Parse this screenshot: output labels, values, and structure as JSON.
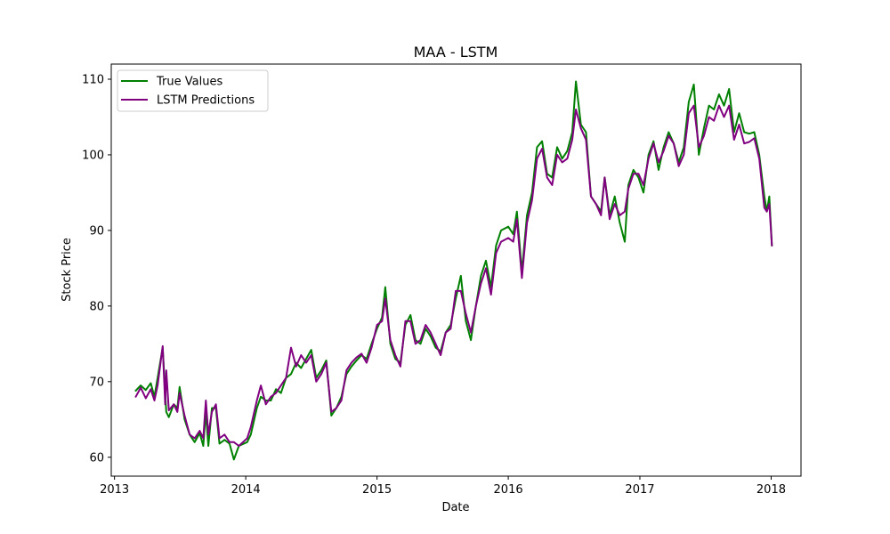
{
  "chart_data": {
    "type": "line",
    "title": "MAA - LSTM",
    "xlabel": "Date",
    "ylabel": "Stock Price",
    "xlim": [
      "2012-12-23",
      "2018-03-25"
    ],
    "ylim": [
      57.5,
      112.0
    ],
    "x_ticks": [
      {
        "date": "2013-01-01",
        "label": "2013"
      },
      {
        "date": "2014-01-01",
        "label": "2014"
      },
      {
        "date": "2015-01-01",
        "label": "2015"
      },
      {
        "date": "2016-01-01",
        "label": "2016"
      },
      {
        "date": "2017-01-01",
        "label": "2017"
      },
      {
        "date": "2018-01-01",
        "label": "2018"
      }
    ],
    "y_ticks": [
      60,
      70,
      80,
      90,
      100,
      110
    ],
    "grid": false,
    "legend_position": "top-left",
    "series": [
      {
        "name": "True Values",
        "color": "#008000",
        "points": [
          [
            "2013-03-01",
            68.8
          ],
          [
            "2013-03-15",
            69.5
          ],
          [
            "2013-03-29",
            68.9
          ],
          [
            "2013-04-12",
            69.8
          ],
          [
            "2013-04-22",
            68.0
          ],
          [
            "2013-05-01",
            70.5
          ],
          [
            "2013-05-15",
            74.5
          ],
          [
            "2013-05-25",
            66.0
          ],
          [
            "2013-06-01",
            65.3
          ],
          [
            "2013-06-15",
            67.0
          ],
          [
            "2013-06-25",
            66.5
          ],
          [
            "2013-07-01",
            69.3
          ],
          [
            "2013-07-15",
            65.0
          ],
          [
            "2013-07-29",
            63.0
          ],
          [
            "2013-08-12",
            62.0
          ],
          [
            "2013-08-26",
            63.2
          ],
          [
            "2013-09-05",
            61.5
          ],
          [
            "2013-09-12",
            66.0
          ],
          [
            "2013-09-19",
            61.5
          ],
          [
            "2013-09-29",
            66.5
          ],
          [
            "2013-10-10",
            66.5
          ],
          [
            "2013-10-20",
            61.8
          ],
          [
            "2013-11-03",
            62.3
          ],
          [
            "2013-11-17",
            61.8
          ],
          [
            "2013-11-29",
            59.7
          ],
          [
            "2013-12-13",
            61.5
          ],
          [
            "2014-01-05",
            62.0
          ],
          [
            "2014-01-15",
            63.0
          ],
          [
            "2014-02-01",
            66.5
          ],
          [
            "2014-02-12",
            68.0
          ],
          [
            "2014-02-26",
            67.5
          ],
          [
            "2014-03-12",
            67.5
          ],
          [
            "2014-03-26",
            69.0
          ],
          [
            "2014-04-09",
            68.5
          ],
          [
            "2014-04-23",
            70.5
          ],
          [
            "2014-05-07",
            71.0
          ],
          [
            "2014-05-21",
            72.5
          ],
          [
            "2014-06-04",
            71.8
          ],
          [
            "2014-06-18",
            73.0
          ],
          [
            "2014-07-02",
            74.2
          ],
          [
            "2014-07-16",
            70.5
          ],
          [
            "2014-07-30",
            71.5
          ],
          [
            "2014-08-13",
            72.8
          ],
          [
            "2014-08-27",
            65.5
          ],
          [
            "2014-09-10",
            66.5
          ],
          [
            "2014-09-24",
            68.0
          ],
          [
            "2014-10-08",
            71.0
          ],
          [
            "2014-10-22",
            72.0
          ],
          [
            "2014-11-05",
            72.8
          ],
          [
            "2014-11-19",
            73.5
          ],
          [
            "2014-12-03",
            73.0
          ],
          [
            "2014-12-17",
            75.0
          ],
          [
            "2015-01-01",
            77.0
          ],
          [
            "2015-01-15",
            78.5
          ],
          [
            "2015-01-24",
            82.5
          ],
          [
            "2015-02-07",
            75.0
          ],
          [
            "2015-02-21",
            73.0
          ],
          [
            "2015-03-07",
            72.5
          ],
          [
            "2015-03-21",
            77.5
          ],
          [
            "2015-04-04",
            78.8
          ],
          [
            "2015-04-18",
            75.5
          ],
          [
            "2015-05-02",
            75.0
          ],
          [
            "2015-05-16",
            77.0
          ],
          [
            "2015-05-30",
            76.0
          ],
          [
            "2015-06-13",
            74.5
          ],
          [
            "2015-06-27",
            74.0
          ],
          [
            "2015-07-11",
            76.5
          ],
          [
            "2015-07-25",
            77.5
          ],
          [
            "2015-08-08",
            81.0
          ],
          [
            "2015-08-22",
            84.0
          ],
          [
            "2015-09-05",
            78.0
          ],
          [
            "2015-09-19",
            75.5
          ],
          [
            "2015-10-03",
            80.0
          ],
          [
            "2015-10-17",
            84.0
          ],
          [
            "2015-10-31",
            86.0
          ],
          [
            "2015-11-14",
            82.5
          ],
          [
            "2015-11-28",
            88.0
          ],
          [
            "2015-12-12",
            90.0
          ],
          [
            "2016-01-01",
            90.5
          ],
          [
            "2016-01-15",
            89.5
          ],
          [
            "2016-01-25",
            92.5
          ],
          [
            "2016-02-08",
            84.5
          ],
          [
            "2016-02-22",
            92.0
          ],
          [
            "2016-03-07",
            95.0
          ],
          [
            "2016-03-21",
            101.0
          ],
          [
            "2016-04-04",
            101.8
          ],
          [
            "2016-04-18",
            97.5
          ],
          [
            "2016-05-02",
            97.0
          ],
          [
            "2016-05-16",
            101.0
          ],
          [
            "2016-05-30",
            99.5
          ],
          [
            "2016-06-13",
            100.5
          ],
          [
            "2016-06-27",
            103.0
          ],
          [
            "2016-07-07",
            109.7
          ],
          [
            "2016-07-21",
            104.0
          ],
          [
            "2016-08-04",
            103.0
          ],
          [
            "2016-08-18",
            94.5
          ],
          [
            "2016-09-01",
            93.5
          ],
          [
            "2016-09-15",
            92.5
          ],
          [
            "2016-09-25",
            97.0
          ],
          [
            "2016-10-09",
            92.0
          ],
          [
            "2016-10-23",
            94.5
          ],
          [
            "2016-11-06",
            91.0
          ],
          [
            "2016-11-20",
            88.5
          ],
          [
            "2016-11-30",
            96.0
          ],
          [
            "2016-12-14",
            98.0
          ],
          [
            "2016-12-28",
            97.0
          ],
          [
            "2017-01-11",
            95.0
          ],
          [
            "2017-01-25",
            100.0
          ],
          [
            "2017-02-08",
            101.8
          ],
          [
            "2017-02-22",
            98.0
          ],
          [
            "2017-03-08",
            101.0
          ],
          [
            "2017-03-22",
            103.0
          ],
          [
            "2017-04-05",
            101.5
          ],
          [
            "2017-04-19",
            99.0
          ],
          [
            "2017-05-03",
            101.0
          ],
          [
            "2017-05-17",
            107.0
          ],
          [
            "2017-05-31",
            109.3
          ],
          [
            "2017-06-14",
            100.0
          ],
          [
            "2017-06-28",
            103.5
          ],
          [
            "2017-07-12",
            106.5
          ],
          [
            "2017-07-26",
            106.0
          ],
          [
            "2017-08-09",
            108.0
          ],
          [
            "2017-08-23",
            106.5
          ],
          [
            "2017-09-06",
            108.7
          ],
          [
            "2017-09-20",
            103.0
          ],
          [
            "2017-10-04",
            105.5
          ],
          [
            "2017-10-18",
            103.0
          ],
          [
            "2017-11-01",
            102.8
          ],
          [
            "2017-11-15",
            103.0
          ],
          [
            "2017-11-29",
            100.0
          ],
          [
            "2017-12-13",
            94.5
          ],
          [
            "2017-12-20",
            92.5
          ],
          [
            "2017-12-27",
            94.5
          ],
          [
            "2018-01-03",
            88.0
          ]
        ]
      },
      {
        "name": "LSTM Predictions",
        "color": "#800080",
        "points": [
          [
            "2013-03-01",
            68.0
          ],
          [
            "2013-03-15",
            69.2
          ],
          [
            "2013-03-29",
            67.8
          ],
          [
            "2013-04-12",
            69.0
          ],
          [
            "2013-04-22",
            67.5
          ],
          [
            "2013-05-01",
            69.5
          ],
          [
            "2013-05-15",
            74.7
          ],
          [
            "2013-05-22",
            67.0
          ],
          [
            "2013-05-25",
            71.5
          ],
          [
            "2013-06-01",
            66.2
          ],
          [
            "2013-06-15",
            67.0
          ],
          [
            "2013-06-25",
            66.0
          ],
          [
            "2013-07-01",
            68.5
          ],
          [
            "2013-07-15",
            65.5
          ],
          [
            "2013-07-29",
            63.0
          ],
          [
            "2013-08-12",
            62.5
          ],
          [
            "2013-08-26",
            63.5
          ],
          [
            "2013-09-05",
            62.5
          ],
          [
            "2013-09-12",
            67.5
          ],
          [
            "2013-09-19",
            63.0
          ],
          [
            "2013-09-29",
            66.0
          ],
          [
            "2013-10-10",
            67.0
          ],
          [
            "2013-10-20",
            62.5
          ],
          [
            "2013-11-03",
            63.0
          ],
          [
            "2013-11-17",
            62.0
          ],
          [
            "2013-11-29",
            62.0
          ],
          [
            "2013-12-13",
            61.5
          ],
          [
            "2014-01-05",
            62.5
          ],
          [
            "2014-01-15",
            64.0
          ],
          [
            "2014-02-01",
            67.5
          ],
          [
            "2014-02-12",
            69.5
          ],
          [
            "2014-02-26",
            67.0
          ],
          [
            "2014-03-12",
            68.0
          ],
          [
            "2014-03-26",
            68.5
          ],
          [
            "2014-04-09",
            69.5
          ],
          [
            "2014-04-23",
            70.5
          ],
          [
            "2014-05-07",
            74.5
          ],
          [
            "2014-05-21",
            72.0
          ],
          [
            "2014-06-04",
            73.5
          ],
          [
            "2014-06-18",
            72.5
          ],
          [
            "2014-07-02",
            73.5
          ],
          [
            "2014-07-16",
            70.0
          ],
          [
            "2014-07-30",
            71.0
          ],
          [
            "2014-08-13",
            72.5
          ],
          [
            "2014-08-27",
            66.0
          ],
          [
            "2014-09-10",
            66.5
          ],
          [
            "2014-09-24",
            67.5
          ],
          [
            "2014-10-08",
            71.5
          ],
          [
            "2014-10-22",
            72.5
          ],
          [
            "2014-11-05",
            73.2
          ],
          [
            "2014-11-19",
            73.7
          ],
          [
            "2014-12-03",
            72.5
          ],
          [
            "2014-12-17",
            74.5
          ],
          [
            "2015-01-01",
            77.5
          ],
          [
            "2015-01-15",
            78.0
          ],
          [
            "2015-01-24",
            81.0
          ],
          [
            "2015-02-07",
            75.5
          ],
          [
            "2015-02-21",
            73.5
          ],
          [
            "2015-03-07",
            72.0
          ],
          [
            "2015-03-21",
            78.0
          ],
          [
            "2015-04-04",
            78.0
          ],
          [
            "2015-04-18",
            75.0
          ],
          [
            "2015-05-02",
            75.5
          ],
          [
            "2015-05-16",
            77.5
          ],
          [
            "2015-05-30",
            76.5
          ],
          [
            "2015-06-13",
            75.0
          ],
          [
            "2015-06-27",
            73.5
          ],
          [
            "2015-07-11",
            76.5
          ],
          [
            "2015-07-25",
            77.0
          ],
          [
            "2015-08-08",
            82.0
          ],
          [
            "2015-08-22",
            82.0
          ],
          [
            "2015-09-05",
            79.0
          ],
          [
            "2015-09-19",
            76.5
          ],
          [
            "2015-10-03",
            80.0
          ],
          [
            "2015-10-17",
            83.0
          ],
          [
            "2015-10-31",
            85.0
          ],
          [
            "2015-11-14",
            81.5
          ],
          [
            "2015-11-28",
            87.0
          ],
          [
            "2015-12-12",
            88.5
          ],
          [
            "2016-01-01",
            89.0
          ],
          [
            "2016-01-15",
            88.5
          ],
          [
            "2016-01-25",
            91.5
          ],
          [
            "2016-02-08",
            83.7
          ],
          [
            "2016-02-22",
            91.0
          ],
          [
            "2016-03-07",
            94.0
          ],
          [
            "2016-03-21",
            99.5
          ],
          [
            "2016-04-04",
            100.8
          ],
          [
            "2016-04-18",
            97.0
          ],
          [
            "2016-05-02",
            96.0
          ],
          [
            "2016-05-16",
            100.0
          ],
          [
            "2016-05-30",
            99.0
          ],
          [
            "2016-06-13",
            99.5
          ],
          [
            "2016-06-27",
            102.0
          ],
          [
            "2016-07-07",
            106.0
          ],
          [
            "2016-07-21",
            103.5
          ],
          [
            "2016-08-04",
            102.0
          ],
          [
            "2016-08-18",
            94.5
          ],
          [
            "2016-09-01",
            93.5
          ],
          [
            "2016-09-15",
            92.0
          ],
          [
            "2016-09-25",
            97.0
          ],
          [
            "2016-10-09",
            91.5
          ],
          [
            "2016-10-23",
            93.5
          ],
          [
            "2016-11-06",
            92.0
          ],
          [
            "2016-11-20",
            92.5
          ],
          [
            "2016-11-30",
            95.5
          ],
          [
            "2016-12-14",
            97.5
          ],
          [
            "2016-12-28",
            97.5
          ],
          [
            "2017-01-11",
            96.0
          ],
          [
            "2017-01-25",
            99.5
          ],
          [
            "2017-02-08",
            101.5
          ],
          [
            "2017-02-22",
            99.0
          ],
          [
            "2017-03-08",
            100.5
          ],
          [
            "2017-03-22",
            102.5
          ],
          [
            "2017-04-05",
            101.5
          ],
          [
            "2017-04-19",
            98.5
          ],
          [
            "2017-05-03",
            100.0
          ],
          [
            "2017-05-17",
            105.5
          ],
          [
            "2017-05-31",
            106.5
          ],
          [
            "2017-06-14",
            101.0
          ],
          [
            "2017-06-28",
            102.5
          ],
          [
            "2017-07-12",
            105.0
          ],
          [
            "2017-07-26",
            104.5
          ],
          [
            "2017-08-09",
            106.5
          ],
          [
            "2017-08-23",
            105.0
          ],
          [
            "2017-09-06",
            106.5
          ],
          [
            "2017-09-20",
            102.0
          ],
          [
            "2017-10-04",
            104.0
          ],
          [
            "2017-10-18",
            101.5
          ],
          [
            "2017-11-01",
            101.7
          ],
          [
            "2017-11-15",
            102.2
          ],
          [
            "2017-11-29",
            99.5
          ],
          [
            "2017-12-13",
            93.0
          ],
          [
            "2017-12-20",
            92.5
          ],
          [
            "2017-12-27",
            93.5
          ],
          [
            "2018-01-03",
            88.0
          ]
        ]
      }
    ]
  }
}
